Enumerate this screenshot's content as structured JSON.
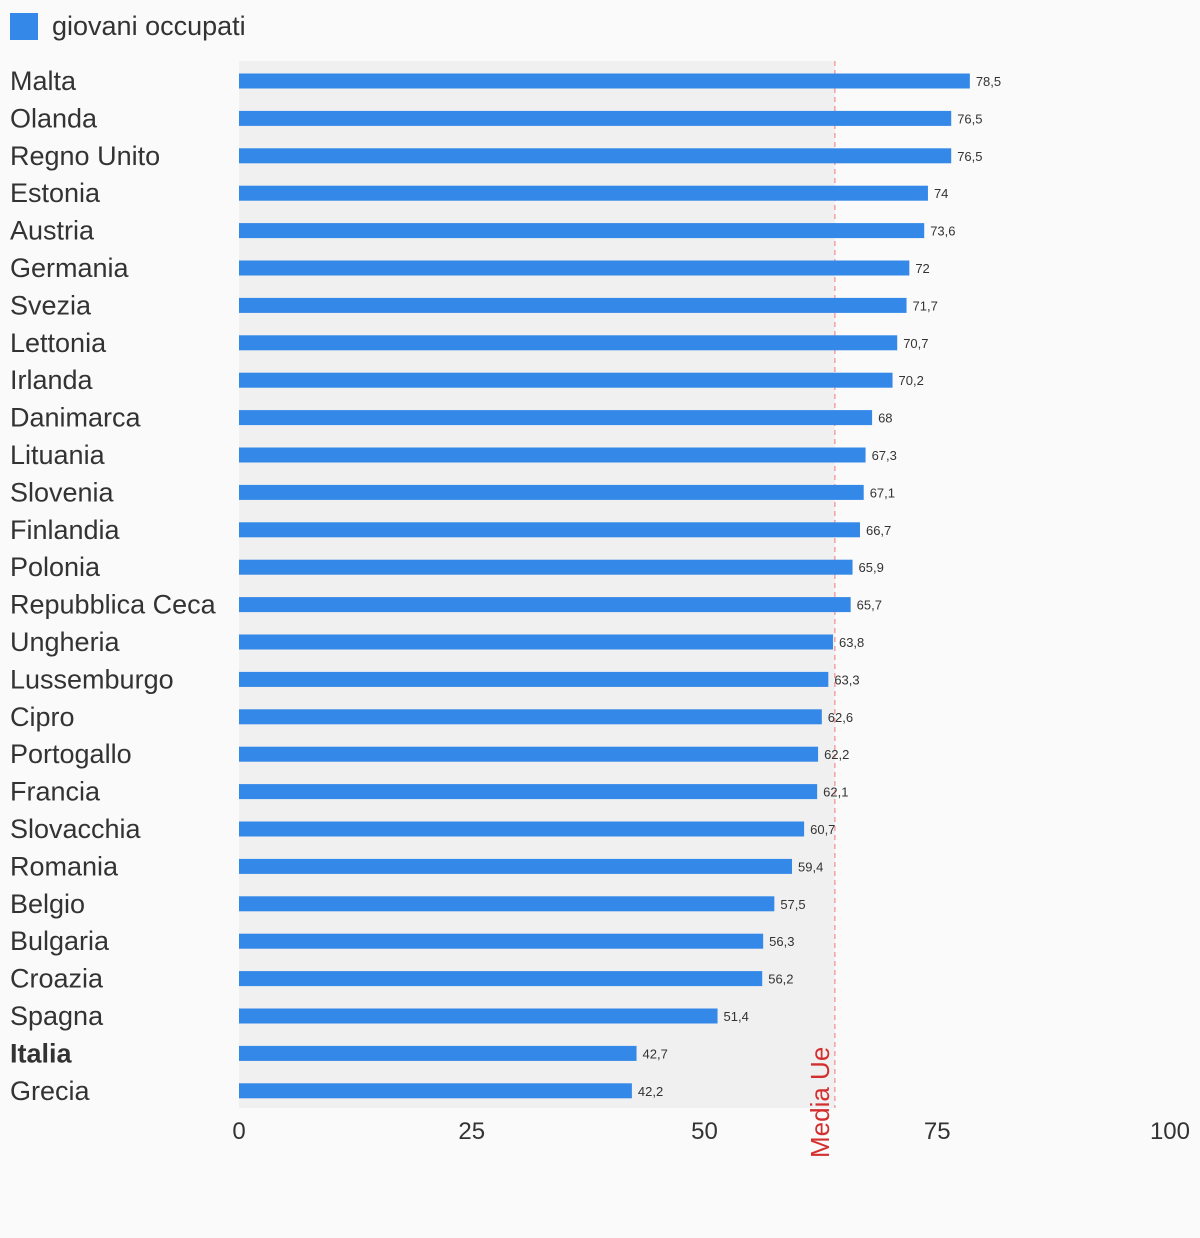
{
  "chart_data": {
    "type": "bar",
    "orientation": "horizontal",
    "series": [
      {
        "name": "giovani occupati",
        "values": [
          78.5,
          76.5,
          76.5,
          74,
          73.6,
          72,
          71.7,
          70.7,
          70.2,
          68,
          67.3,
          67.1,
          66.7,
          65.9,
          65.7,
          63.8,
          63.3,
          62.6,
          62.2,
          62.1,
          60.7,
          59.4,
          57.5,
          56.3,
          56.2,
          51.4,
          42.7,
          42.2
        ],
        "value_labels": [
          "78,5",
          "76,5",
          "76,5",
          "74",
          "73,6",
          "72",
          "71,7",
          "70,7",
          "70,2",
          "68",
          "67,3",
          "67,1",
          "66,7",
          "65,9",
          "65,7",
          "63,8",
          "63,3",
          "62,6",
          "62,2",
          "62,1",
          "60,7",
          "59,4",
          "57,5",
          "56,3",
          "56,2",
          "51,4",
          "42,7",
          "42,2"
        ],
        "color": "#3388e8"
      }
    ],
    "categories": [
      "Malta",
      "Olanda",
      "Regno Unito",
      "Estonia",
      "Austria",
      "Germania",
      "Svezia",
      "Lettonia",
      "Irlanda",
      "Danimarca",
      "Lituania",
      "Slovenia",
      "Finlandia",
      "Polonia",
      "Repubblica Ceca",
      "Ungheria",
      "Lussemburgo",
      "Cipro",
      "Portogallo",
      "Francia",
      "Slovacchia",
      "Romania",
      "Belgio",
      "Bulgaria",
      "Croazia",
      "Spagna",
      "Italia",
      "Grecia"
    ],
    "highlight_category": "Italia",
    "xlim": [
      0,
      100
    ],
    "x_ticks": [
      {
        "value": 0,
        "label": "0"
      },
      {
        "value": 25,
        "label": "25"
      },
      {
        "value": 50,
        "label": "50"
      },
      {
        "value": 75,
        "label": "75"
      },
      {
        "value": 100,
        "label": "100"
      }
    ],
    "reference_line": {
      "value": 64,
      "label": "Media Ue",
      "color": "#d32f2f"
    },
    "shaded_region": {
      "from": 0,
      "to": 64,
      "color": "#f0f0f0"
    },
    "legend": {
      "position": "top-left"
    },
    "grid": false
  }
}
